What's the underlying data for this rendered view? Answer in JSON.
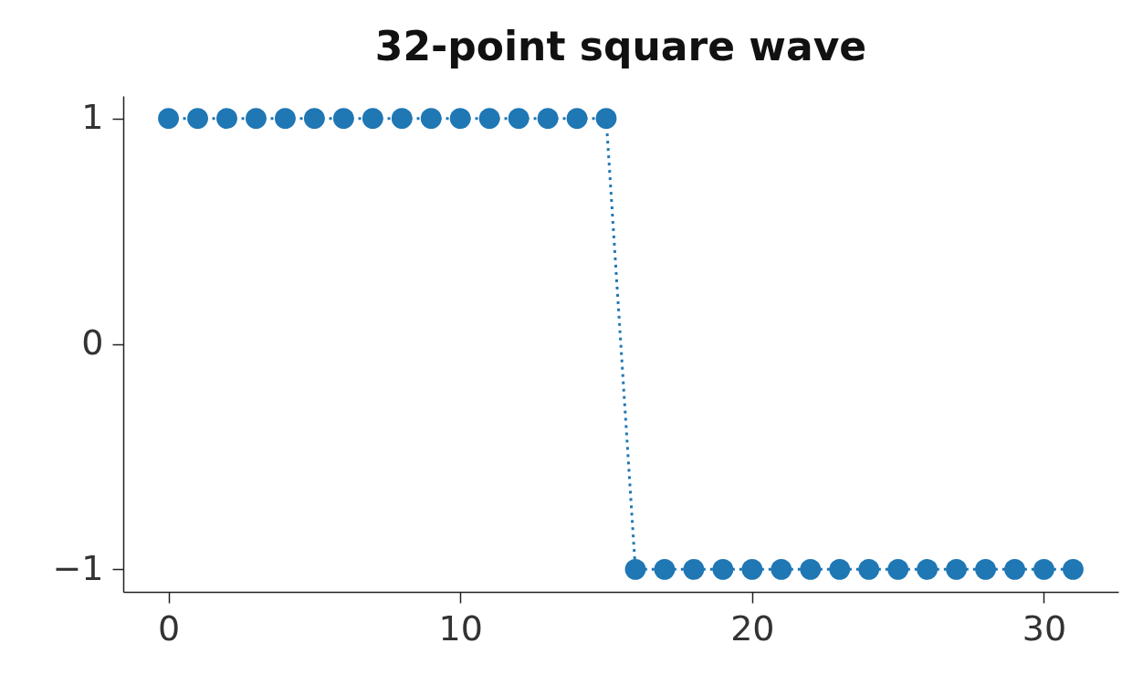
{
  "chart_data": {
    "type": "line",
    "title": "32-point square wave",
    "x": [
      0,
      1,
      2,
      3,
      4,
      5,
      6,
      7,
      8,
      9,
      10,
      11,
      12,
      13,
      14,
      15,
      16,
      17,
      18,
      19,
      20,
      21,
      22,
      23,
      24,
      25,
      26,
      27,
      28,
      29,
      30,
      31
    ],
    "series": [
      {
        "color": "#1f77b4",
        "values": [
          1,
          1,
          1,
          1,
          1,
          1,
          1,
          1,
          1,
          1,
          1,
          1,
          1,
          1,
          1,
          1,
          -1,
          -1,
          -1,
          -1,
          -1,
          -1,
          -1,
          -1,
          -1,
          -1,
          -1,
          -1,
          -1,
          -1,
          -1,
          -1
        ]
      }
    ],
    "xlim": [
      -1.55,
      32.55
    ],
    "ylim": [
      -1.1,
      1.1
    ],
    "xticks": [
      0,
      10,
      20,
      30
    ],
    "yticks": [
      -1,
      0,
      1
    ],
    "grid": false,
    "legend": false,
    "marker": "circle",
    "line_style": "dotted"
  }
}
